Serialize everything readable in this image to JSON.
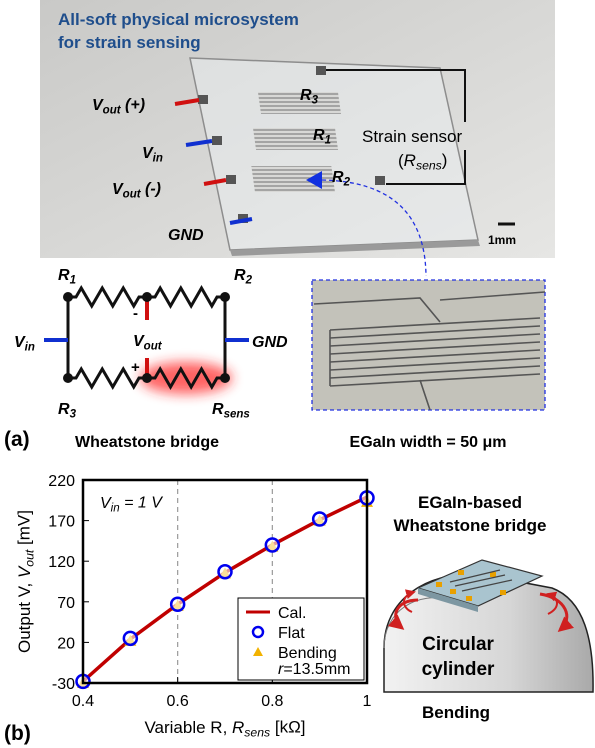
{
  "panel_a": {
    "label": "(a)",
    "title_lines": [
      "All-soft physical microsystem",
      "for strain sensing"
    ],
    "photo_labels": [
      {
        "var": "V",
        "sub": "out",
        "post": " (+)"
      },
      {
        "var": "V",
        "sub": "in"
      },
      {
        "var": "V",
        "sub": "out",
        "post": " (-)"
      },
      {
        "pre": "GND"
      },
      {
        "var": "R",
        "sub": "3"
      },
      {
        "var": "R",
        "sub": "1"
      },
      {
        "var": "R",
        "sub": "2"
      },
      {
        "pre": "Strain sensor"
      },
      {
        "pre": "(",
        "var": "R",
        "sub": "sens",
        "post": ")"
      }
    ],
    "scale_bar": "1mm",
    "circuit_labels": [
      {
        "var": "R",
        "sub": "1"
      },
      {
        "var": "R",
        "sub": "2"
      },
      {
        "var": "V",
        "sub": "in"
      },
      {
        "pre": "GND"
      },
      {
        "var": "V",
        "sub": "out"
      },
      {
        "var": "R",
        "sub": "3"
      },
      {
        "var": "R",
        "sub": "sens"
      },
      {
        "pre": "-"
      },
      {
        "pre": "+"
      }
    ],
    "circuit_caption": "Wheatstone bridge",
    "inset_caption": "EGaIn width = 50 μm"
  },
  "chart_data": {
    "type": "line",
    "x": [
      0.4,
      0.5,
      0.6,
      0.7,
      0.8,
      0.9,
      1
    ],
    "xlim": [
      0.4,
      1
    ],
    "xticks": [
      0.4,
      0.6,
      0.8,
      1
    ],
    "ylim": [
      -30,
      220
    ],
    "yticks": [
      -30,
      20,
      70,
      120,
      170,
      220
    ],
    "x_grid": "dashed",
    "xlabel": {
      "pre": "Variable R, ",
      "var": "R",
      "sub": "sens",
      "post": " [kΩ]"
    },
    "ylabel": {
      "pre": "Output V, ",
      "var": "V",
      "sub": "out",
      "post": " [mV]"
    },
    "annotation": {
      "var": "V",
      "sub": "in",
      "post": " = 1 V"
    },
    "series": [
      {
        "name": "Cal.",
        "color": "#c00000",
        "marker": "line",
        "values": [
          -28,
          24,
          67,
          106,
          140,
          171,
          199
        ]
      },
      {
        "name": "Flat",
        "color": "#0000ee",
        "marker": "circle",
        "values": [
          -28,
          25,
          67,
          107,
          140,
          172,
          198
        ]
      },
      {
        "name": "Bending",
        "color": "#f2b200",
        "marker": "triangle",
        "values": [
          -30,
          22,
          65,
          105,
          138,
          170,
          193
        ]
      }
    ],
    "legend": "lower right",
    "legend_note": {
      "var": "r",
      "post": "=13.5mm"
    }
  },
  "panel_b": {
    "label": "(b)",
    "device_title": [
      "EGaIn-based",
      "Wheatstone bridge"
    ],
    "substrate": [
      "Circular",
      "cylinder"
    ],
    "caption": "Bending"
  }
}
